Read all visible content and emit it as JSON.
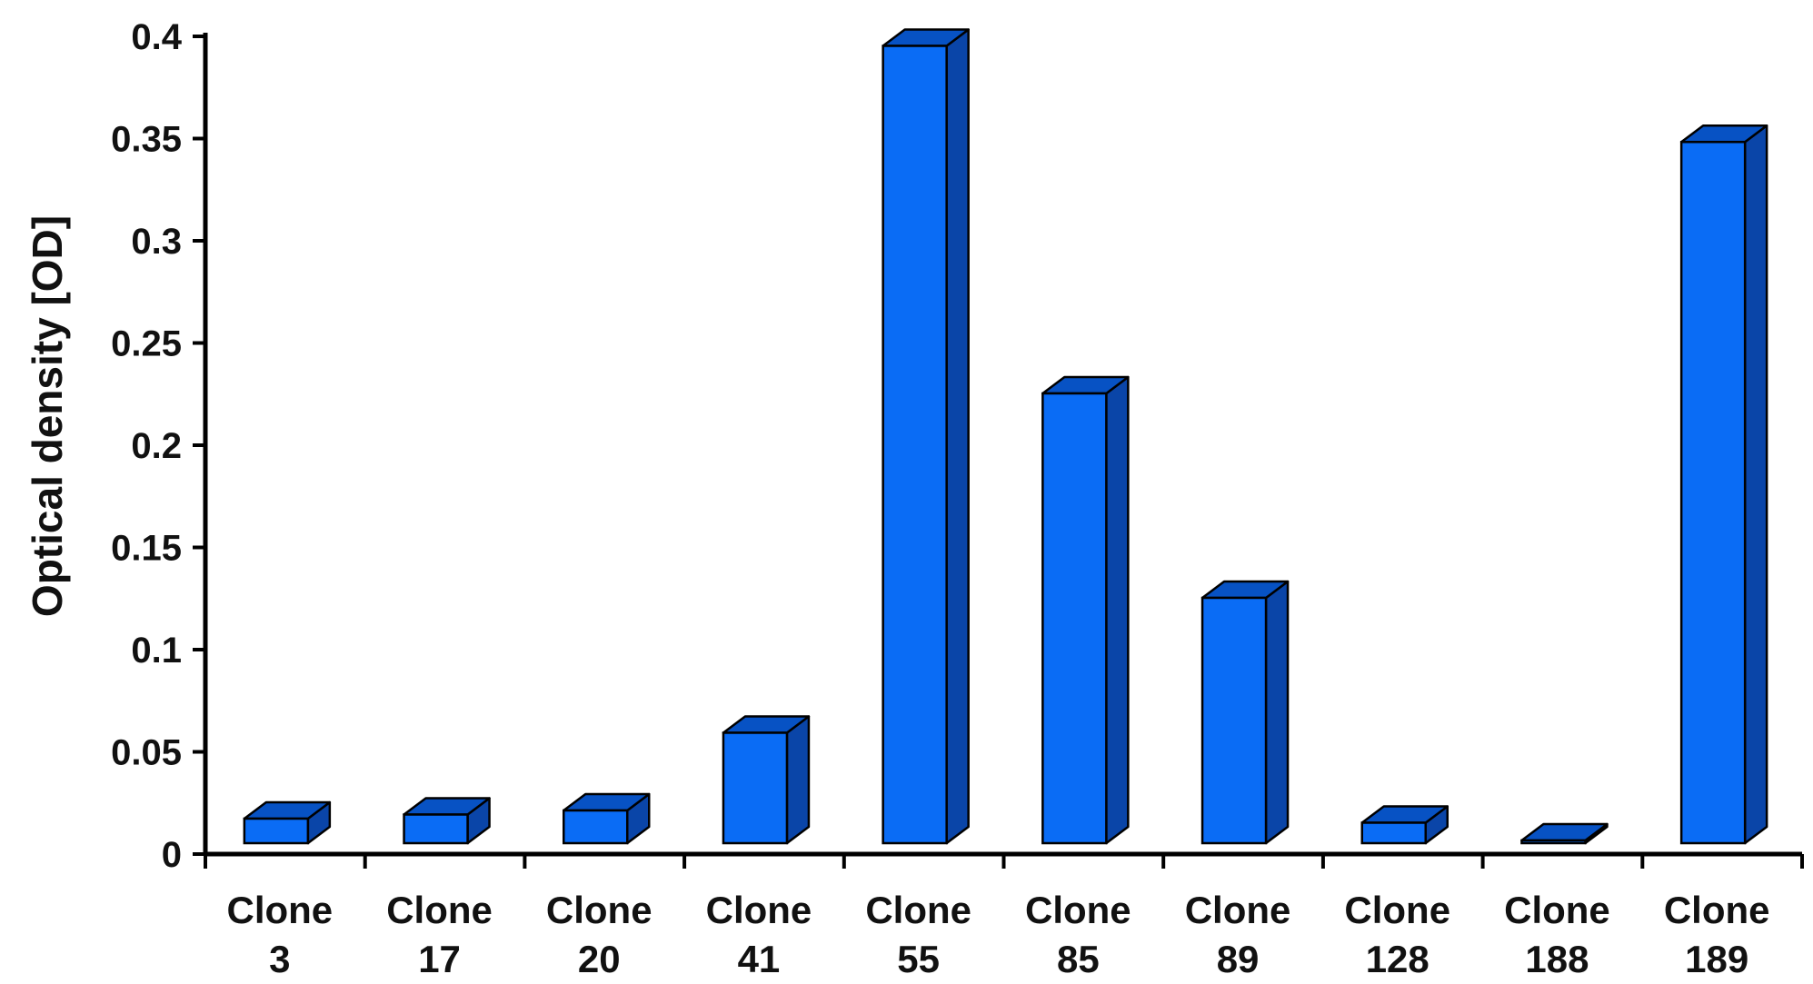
{
  "chart_data": {
    "type": "bar",
    "style": "3d-bar",
    "categories": [
      {
        "line1": "Clone",
        "line2": "3"
      },
      {
        "line1": "Clone",
        "line2": "17"
      },
      {
        "line1": "Clone",
        "line2": "20"
      },
      {
        "line1": "Clone",
        "line2": "41"
      },
      {
        "line1": "Clone",
        "line2": "55"
      },
      {
        "line1": "Clone",
        "line2": "85"
      },
      {
        "line1": "Clone",
        "line2": "89"
      },
      {
        "line1": "Clone",
        "line2": "128"
      },
      {
        "line1": "Clone",
        "line2": "188"
      },
      {
        "line1": "Clone",
        "line2": "189"
      }
    ],
    "values": [
      0.012,
      0.014,
      0.016,
      0.054,
      0.39,
      0.22,
      0.12,
      0.01,
      0.001,
      0.343
    ],
    "title": "",
    "xlabel": "",
    "ylabel": "Optical density [OD]",
    "ylim": [
      0,
      0.4
    ],
    "yticks": [
      "0",
      "0.05",
      "0.1",
      "0.15",
      "0.2",
      "0.25",
      "0.3",
      "0.35",
      "0.4"
    ],
    "grid": false,
    "legend": "none",
    "colors": {
      "bar_front": "#0a6cf5",
      "bar_top": "#0752c4",
      "bar_side": "#0a45a8",
      "bar_edge": "#000000",
      "axis": "#000000"
    }
  }
}
